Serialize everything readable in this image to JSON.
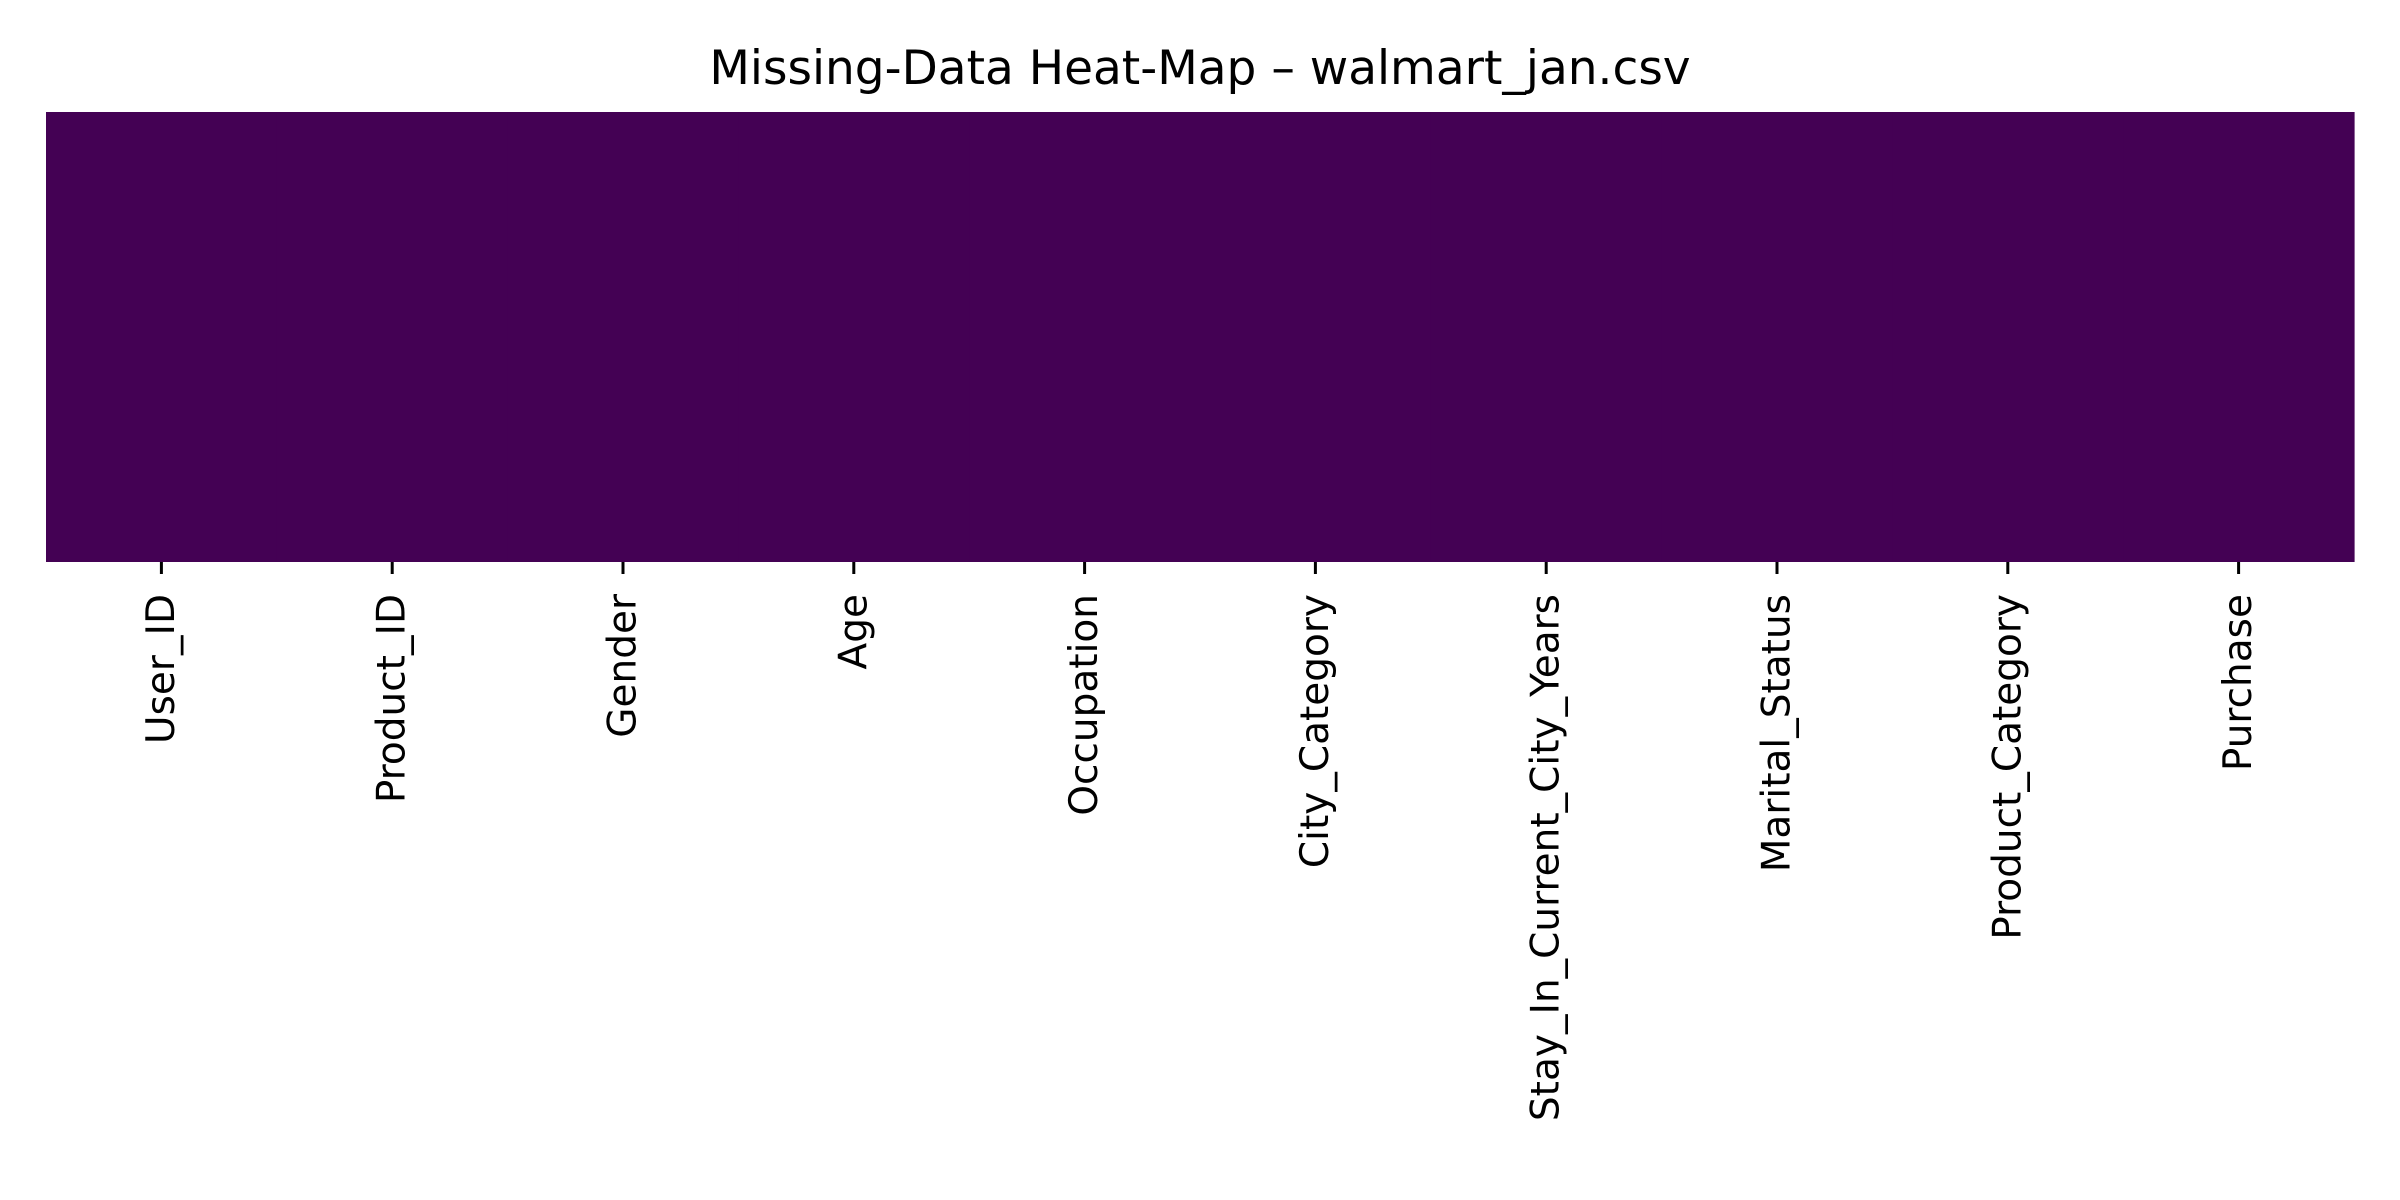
{
  "chart_data": {
    "type": "heatmap",
    "title": "Missing-Data Heat-Map – walmart_jan.csv",
    "columns": [
      "User_ID",
      "Product_ID",
      "Gender",
      "Age",
      "Occupation",
      "City_Category",
      "Stay_In_Current_City_Years",
      "Marital_Status",
      "Product_Category",
      "Purchase"
    ],
    "missing": [
      false,
      false,
      false,
      false,
      false,
      false,
      false,
      false,
      false,
      false
    ],
    "colorbar": false,
    "y_tick_labels": false
  },
  "colors": {
    "present": "#440154",
    "missing": "#fde725"
  }
}
